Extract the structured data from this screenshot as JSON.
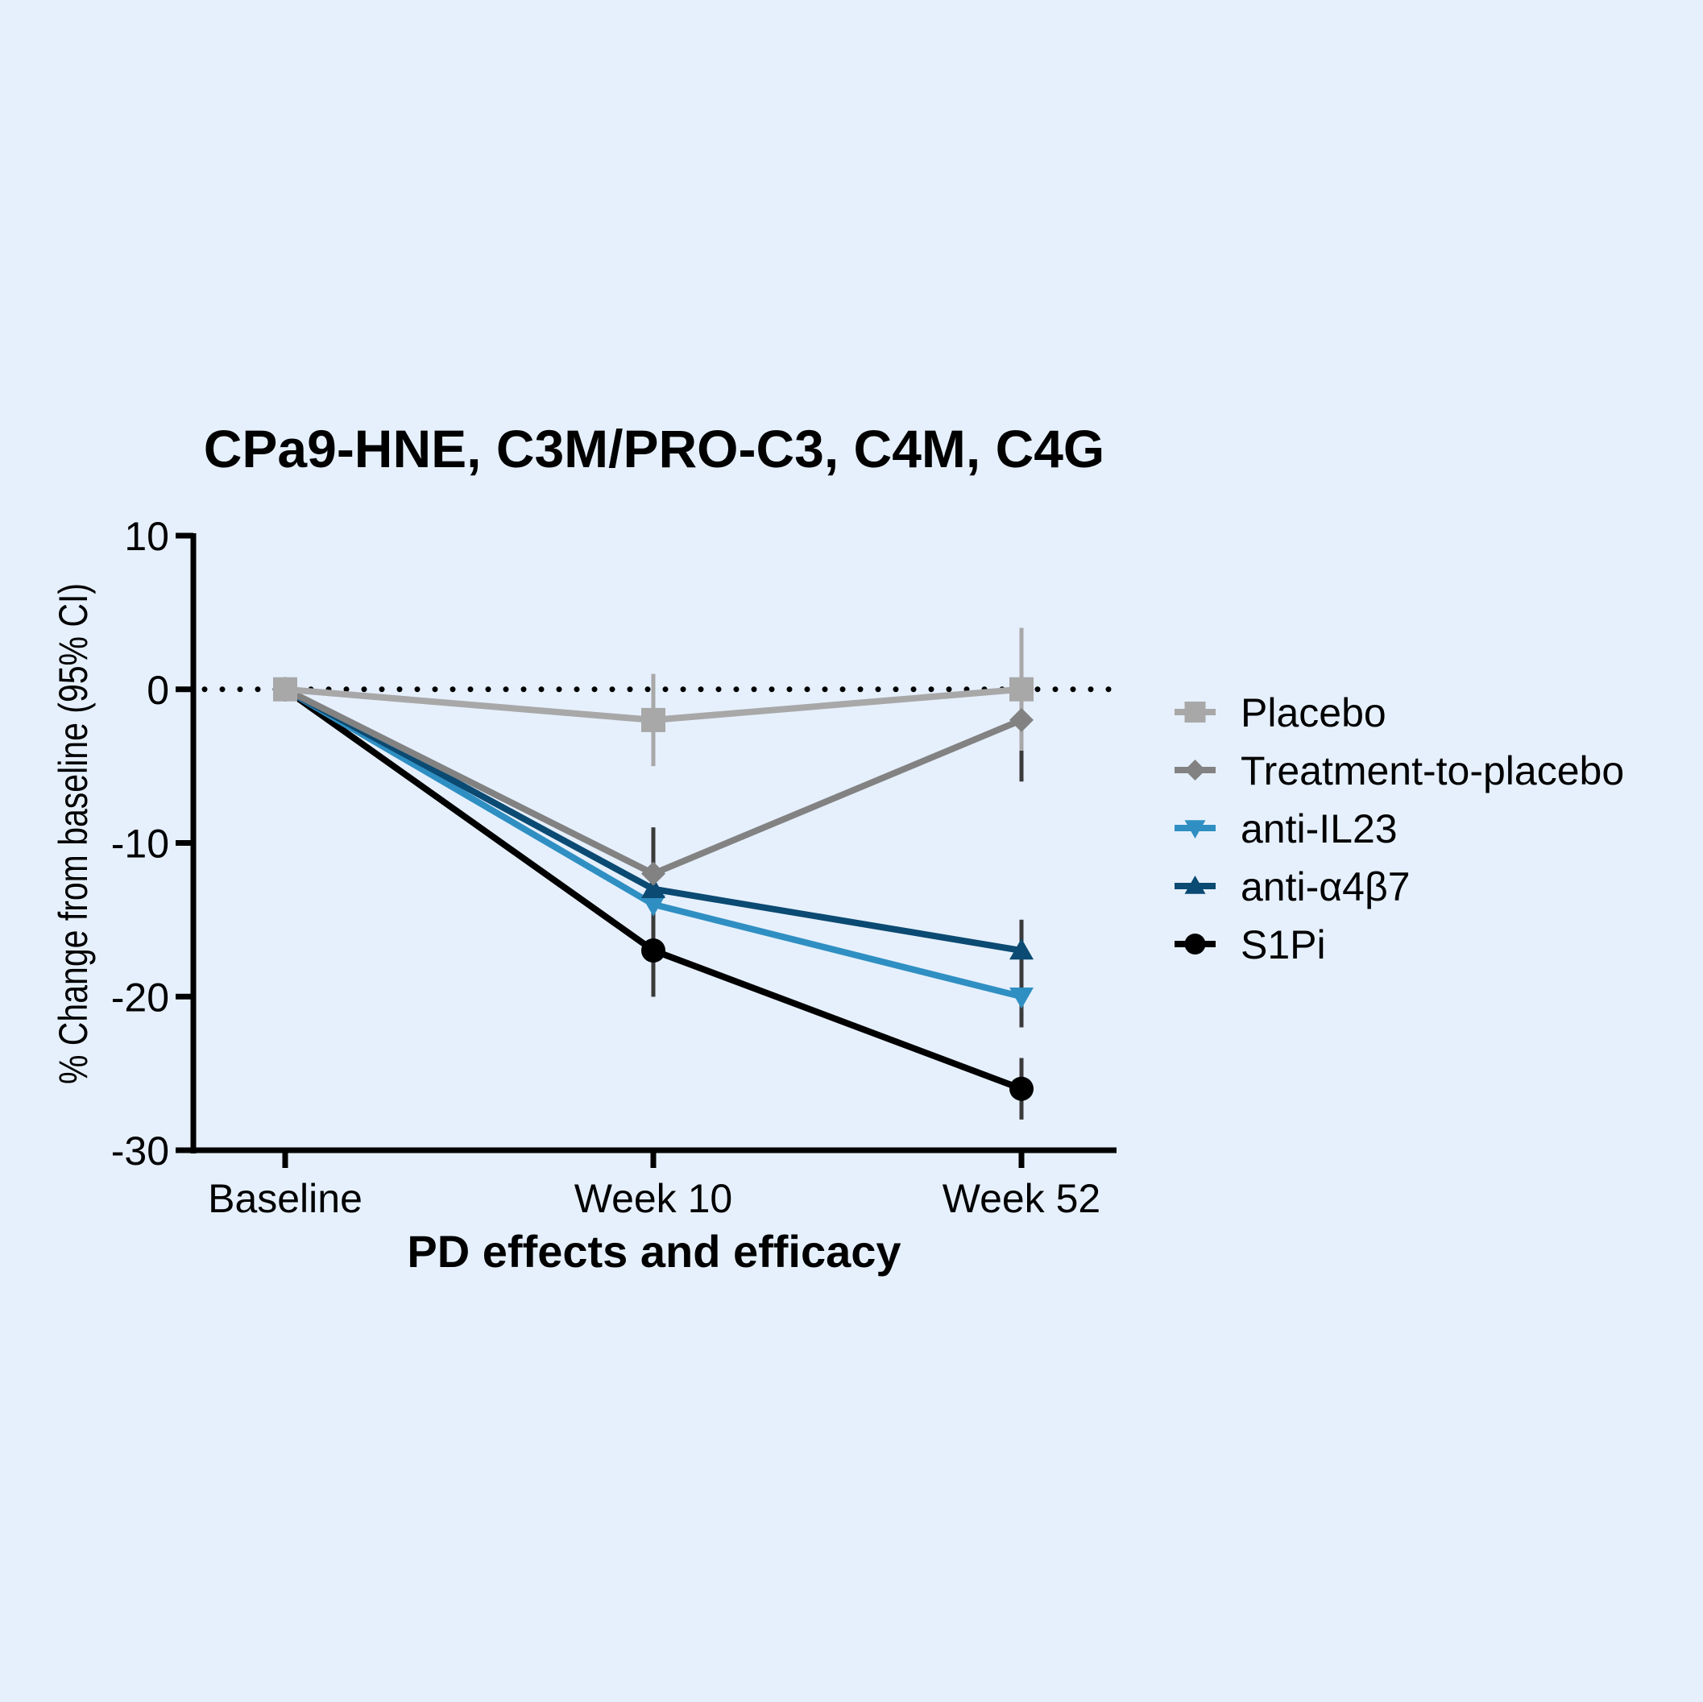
{
  "chart_data": {
    "type": "line",
    "title": "CPa9-HNE, C3M/PRO-C3, C4M, C4G",
    "xlabel": "PD effects and efficacy",
    "ylabel": "%  Change from baseline  (95% CI)",
    "categories": [
      "Baseline",
      "Week 10",
      "Week 52"
    ],
    "ylim": [
      -30,
      10
    ],
    "yticks": [
      10,
      0,
      -10,
      -20,
      -30
    ],
    "ytick_labels": [
      "10",
      "0",
      "-10",
      "-20",
      "-30"
    ],
    "reference_line": {
      "y": 0,
      "style": "dotted"
    },
    "grid": false,
    "legend_position": "right",
    "series": [
      {
        "name": "Placebo",
        "marker": "square",
        "color": "#a8a8a8",
        "values": [
          0,
          -2,
          0
        ],
        "ci_low": [
          null,
          -5,
          -4
        ],
        "ci_high": [
          null,
          1,
          4
        ],
        "errorbar_color": "#a8a8a8"
      },
      {
        "name": "Treatment-to-placebo",
        "marker": "diamond",
        "color": "#828282",
        "values": [
          0,
          -12,
          -2
        ],
        "ci_low": [
          null,
          -20,
          -6
        ],
        "ci_high": [
          null,
          -9,
          2
        ],
        "errorbar_color": "#3a3a3a"
      },
      {
        "name": "anti-IL23",
        "marker": "triangle-down",
        "color": "#2f8fc2",
        "values": [
          0,
          -14,
          -20
        ],
        "ci_low": [
          null,
          -20,
          -22
        ],
        "ci_high": [
          null,
          -9,
          -15
        ],
        "errorbar_color": "#3a3a3a"
      },
      {
        "name": "anti-α4β7",
        "marker": "triangle-up",
        "color": "#0b4a72",
        "values": [
          0,
          -13,
          -17
        ],
        "ci_low": [
          null,
          -20,
          -22
        ],
        "ci_high": [
          null,
          -9,
          -15
        ],
        "errorbar_color": "#3a3a3a"
      },
      {
        "name": "S1Pi",
        "marker": "circle",
        "color": "#000000",
        "values": [
          0,
          -17,
          -26
        ],
        "ci_low": [
          null,
          -20,
          -28
        ],
        "ci_high": [
          null,
          -9,
          -24
        ],
        "errorbar_color": "#3a3a3a"
      }
    ]
  }
}
